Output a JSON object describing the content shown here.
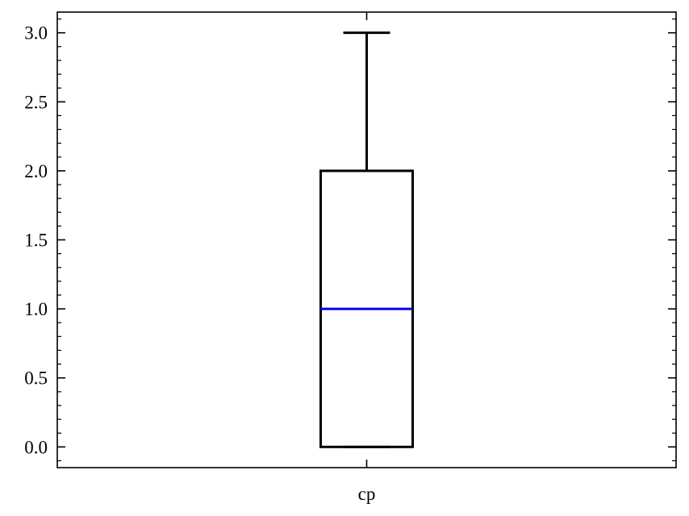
{
  "chart_data": {
    "type": "box",
    "categories": [
      "cp"
    ],
    "boxes": [
      {
        "name": "cp",
        "whisker_low": 0.0,
        "q1": 0.0,
        "median": 1.0,
        "q3": 2.0,
        "whisker_high": 3.0
      }
    ],
    "ylim": [
      -0.15,
      3.15
    ],
    "yticks": [
      0.0,
      0.5,
      1.0,
      1.5,
      2.0,
      2.5,
      3.0
    ],
    "ytick_labels": [
      "0.0",
      "0.5",
      "1.0",
      "1.5",
      "2.0",
      "2.5",
      "3.0"
    ],
    "yminor_step": 0.1,
    "title": "",
    "xlabel": "",
    "ylabel": "",
    "grid": false,
    "colors": {
      "box": "#000000",
      "whisker": "#000000",
      "median": "#0000ee"
    }
  }
}
